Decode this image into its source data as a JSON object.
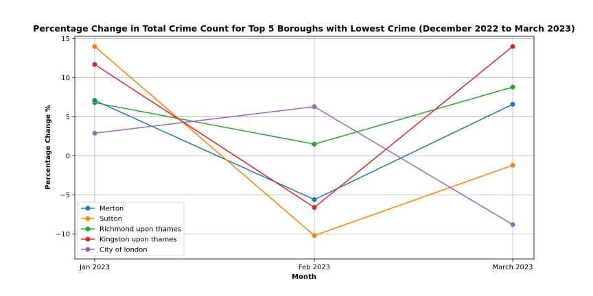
{
  "chart_data": {
    "type": "line",
    "title": "Percentage Change in Total Crime Count for Top 5 Boroughs with Lowest Crime (December 2022 to March 2023)",
    "xlabel": "Month",
    "ylabel": "Percentage Change %",
    "categories": [
      "Jan 2023",
      "Feb 2023",
      "March 2023"
    ],
    "ylim": [
      -13.2,
      15.3
    ],
    "yticks": [
      -10,
      -5,
      0,
      5,
      10,
      15
    ],
    "ytick_labels": [
      "−10",
      "−5",
      "0",
      "5",
      "10",
      "15"
    ],
    "grid": true,
    "legend_position": "lower-left",
    "series": [
      {
        "name": "Merton",
        "color": "#1f77b4",
        "values": [
          7.1,
          -5.6,
          6.6
        ]
      },
      {
        "name": "Sutton",
        "color": "#ff7f0e",
        "values": [
          14.0,
          -10.2,
          -1.2
        ]
      },
      {
        "name": "Richmond upon thames",
        "color": "#2ca02c",
        "values": [
          6.8,
          1.5,
          8.8
        ]
      },
      {
        "name": "Kingston upon thames",
        "color": "#d62728",
        "values": [
          11.7,
          -6.6,
          14.0
        ]
      },
      {
        "name": "City of london",
        "color": "#9467bd",
        "values": [
          2.9,
          6.3,
          -8.8
        ]
      }
    ]
  }
}
